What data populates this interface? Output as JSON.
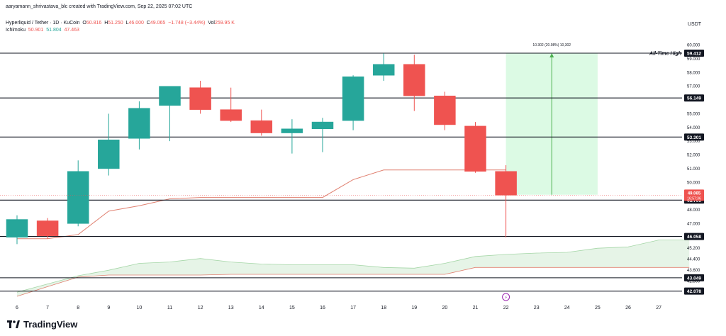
{
  "header": {
    "created_by": "aaryamann_shrivastava_blc created with TradingView.com, Sep 22, 2025 07:02 UTC",
    "symbol": "Hyperliquid / Tether · 1D · KuCoin",
    "open_label": "O",
    "open": "50.816",
    "high_label": "H",
    "high": "51.250",
    "low_label": "L",
    "low": "46.000",
    "close_label": "C",
    "close": "49.065",
    "change": "−1.748 (−3.44%)",
    "vol_label": "Vol",
    "vol": "259.95 K",
    "ichimoku_label": "Ichimoku",
    "ichimoku_values": [
      "50.901",
      "51.804",
      "47.463"
    ]
  },
  "currency": "USDT",
  "brand": {
    "name": "TradingView"
  },
  "colors": {
    "up": "#26a69a",
    "down": "#ef5350",
    "line": "#131722",
    "ichimoku_line": "#e08070",
    "cloud": "#c8e6c9",
    "measure": "#b9f6ca"
  },
  "chart_data": {
    "type": "candlestick",
    "ylim": [
      41.7,
      60.6
    ],
    "x_ticks": [
      "6",
      "7",
      "8",
      "9",
      "10",
      "11",
      "12",
      "13",
      "14",
      "15",
      "16",
      "17",
      "18",
      "19",
      "20",
      "21",
      "22",
      "23",
      "24",
      "25",
      "26",
      "27"
    ],
    "y_ticks": [
      "60.000",
      "59.000",
      "58.000",
      "57.000",
      "56.000",
      "55.000",
      "54.000",
      "53.000",
      "52.000",
      "51.000",
      "50.000",
      "49.000",
      "48.000",
      "47.000",
      "46.000",
      "45.200",
      "44.400",
      "43.600",
      "42.800"
    ],
    "candles": [
      {
        "x": "6",
        "o": 46.0,
        "h": 47.6,
        "l": 45.5,
        "c": 47.3
      },
      {
        "x": "7",
        "o": 47.2,
        "h": 47.4,
        "l": 45.9,
        "c": 46.1
      },
      {
        "x": "8",
        "o": 47.0,
        "h": 51.6,
        "l": 46.8,
        "c": 50.8
      },
      {
        "x": "9",
        "o": 51.0,
        "h": 55.0,
        "l": 50.5,
        "c": 53.1
      },
      {
        "x": "10",
        "o": 53.2,
        "h": 55.9,
        "l": 52.4,
        "c": 55.4
      },
      {
        "x": "11",
        "o": 55.6,
        "h": 57.0,
        "l": 53.0,
        "c": 57.0
      },
      {
        "x": "12",
        "o": 56.9,
        "h": 57.4,
        "l": 55.0,
        "c": 55.3
      },
      {
        "x": "13",
        "o": 55.3,
        "h": 56.9,
        "l": 54.4,
        "c": 54.5
      },
      {
        "x": "14",
        "o": 54.5,
        "h": 55.3,
        "l": 53.4,
        "c": 53.6
      },
      {
        "x": "15",
        "o": 53.6,
        "h": 54.6,
        "l": 52.1,
        "c": 53.9
      },
      {
        "x": "16",
        "o": 53.9,
        "h": 54.7,
        "l": 52.2,
        "c": 54.4
      },
      {
        "x": "17",
        "o": 54.5,
        "h": 57.8,
        "l": 53.8,
        "c": 57.7
      },
      {
        "x": "18",
        "o": 57.8,
        "h": 59.4,
        "l": 57.4,
        "c": 58.6
      },
      {
        "x": "19",
        "o": 58.6,
        "h": 59.3,
        "l": 55.2,
        "c": 56.3
      },
      {
        "x": "20",
        "o": 56.3,
        "h": 56.6,
        "l": 53.8,
        "c": 54.2
      },
      {
        "x": "21",
        "o": 54.1,
        "h": 54.4,
        "l": 50.7,
        "c": 50.8
      },
      {
        "x": "22",
        "o": 50.8,
        "h": 51.25,
        "l": 46.0,
        "c": 49.065
      }
    ],
    "ichimoku_line": [
      {
        "x": "6",
        "y": 45.9
      },
      {
        "x": "7",
        "y": 45.9
      },
      {
        "x": "8",
        "y": 46.2
      },
      {
        "x": "9",
        "y": 47.9
      },
      {
        "x": "10",
        "y": 48.3
      },
      {
        "x": "11",
        "y": 48.8
      },
      {
        "x": "12",
        "y": 48.9
      },
      {
        "x": "13",
        "y": 48.9
      },
      {
        "x": "14",
        "y": 48.9
      },
      {
        "x": "15",
        "y": 48.9
      },
      {
        "x": "16",
        "y": 48.9
      },
      {
        "x": "17",
        "y": 50.2
      },
      {
        "x": "18",
        "y": 50.9
      },
      {
        "x": "19",
        "y": 50.9
      },
      {
        "x": "20",
        "y": 50.9
      },
      {
        "x": "21",
        "y": 50.9
      },
      {
        "x": "22",
        "y": 50.9
      }
    ],
    "cloud_upper": [
      {
        "x": "6",
        "y": 42.0
      },
      {
        "x": "7",
        "y": 42.6
      },
      {
        "x": "8",
        "y": 43.2
      },
      {
        "x": "9",
        "y": 43.6
      },
      {
        "x": "10",
        "y": 44.1
      },
      {
        "x": "11",
        "y": 44.2
      },
      {
        "x": "12",
        "y": 44.45
      },
      {
        "x": "13",
        "y": 44.2
      },
      {
        "x": "14",
        "y": 44.05
      },
      {
        "x": "15",
        "y": 44.0
      },
      {
        "x": "16",
        "y": 44.0
      },
      {
        "x": "17",
        "y": 44.0
      },
      {
        "x": "18",
        "y": 43.8
      },
      {
        "x": "19",
        "y": 43.75
      },
      {
        "x": "20",
        "y": 44.1
      },
      {
        "x": "21",
        "y": 44.6
      },
      {
        "x": "22",
        "y": 44.75
      },
      {
        "x": "23",
        "y": 44.85
      },
      {
        "x": "24",
        "y": 44.9
      },
      {
        "x": "25",
        "y": 45.2
      },
      {
        "x": "26",
        "y": 45.3
      },
      {
        "x": "27",
        "y": 45.8
      },
      {
        "x": "28",
        "y": 45.8
      }
    ],
    "cloud_lower": [
      {
        "x": "6",
        "y": 41.7
      },
      {
        "x": "7",
        "y": 42.4
      },
      {
        "x": "8",
        "y": 43.1
      },
      {
        "x": "9",
        "y": 43.25
      },
      {
        "x": "10",
        "y": 43.25
      },
      {
        "x": "11",
        "y": 43.25
      },
      {
        "x": "12",
        "y": 43.25
      },
      {
        "x": "13",
        "y": 43.3
      },
      {
        "x": "14",
        "y": 43.3
      },
      {
        "x": "15",
        "y": 43.3
      },
      {
        "x": "16",
        "y": 43.3
      },
      {
        "x": "17",
        "y": 43.3
      },
      {
        "x": "18",
        "y": 43.3
      },
      {
        "x": "19",
        "y": 43.3
      },
      {
        "x": "20",
        "y": 43.3
      },
      {
        "x": "21",
        "y": 43.8
      },
      {
        "x": "22",
        "y": 43.8
      },
      {
        "x": "23",
        "y": 43.8
      },
      {
        "x": "24",
        "y": 43.8
      },
      {
        "x": "25",
        "y": 43.8
      },
      {
        "x": "26",
        "y": 43.8
      },
      {
        "x": "27",
        "y": 43.8
      },
      {
        "x": "28",
        "y": 43.8
      }
    ],
    "levels": [
      {
        "label": "59.412",
        "y": 59.412
      },
      {
        "label": "56.149",
        "y": 56.149
      },
      {
        "label": "53.301",
        "y": 53.301
      },
      {
        "label": "48.709",
        "y": 48.709
      },
      {
        "label": "46.058",
        "y": 46.058
      },
      {
        "label": "43.049",
        "y": 43.049
      },
      {
        "label": "42.078",
        "y": 42.078
      }
    ],
    "ath_label": "All-Time High",
    "current_price": {
      "label": "49.065",
      "countdown": "16:57:36",
      "y": 49.065
    },
    "measure": {
      "x_start": "22",
      "x_end": "25",
      "y_low": 49.1,
      "y_high": 59.412,
      "label": "10.302 (20.98%) 10,302"
    },
    "event_marker": {
      "x": "22",
      "symbol": "⚡"
    }
  }
}
